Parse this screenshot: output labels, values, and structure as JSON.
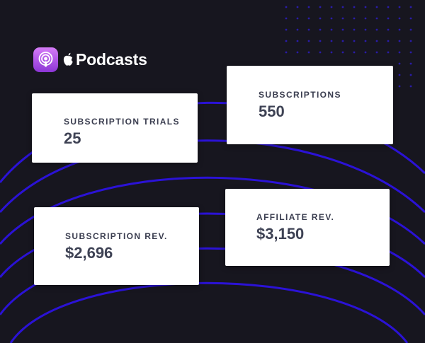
{
  "brand": {
    "icon": "podcasts-app-icon",
    "logo": "apple-logo",
    "name": "Podcasts"
  },
  "cards": [
    {
      "label": "SUBSCRIPTION TRIALS",
      "value": "25"
    },
    {
      "label": "SUBSCRIPTIONS",
      "value": "550"
    },
    {
      "label": "SUBSCRIPTION REV.",
      "value": "$2,696"
    },
    {
      "label": "AFFILIATE REV.",
      "value": "$3,150"
    }
  ],
  "colors": {
    "background": "#17161f",
    "accent_lines": "#2b12d6",
    "dots": "#2a1ca8",
    "card_background": "#ffffff",
    "card_text": "#3a3d4f",
    "icon_gradient_top": "#d57cf7",
    "icon_gradient_bottom": "#8c35d6"
  }
}
